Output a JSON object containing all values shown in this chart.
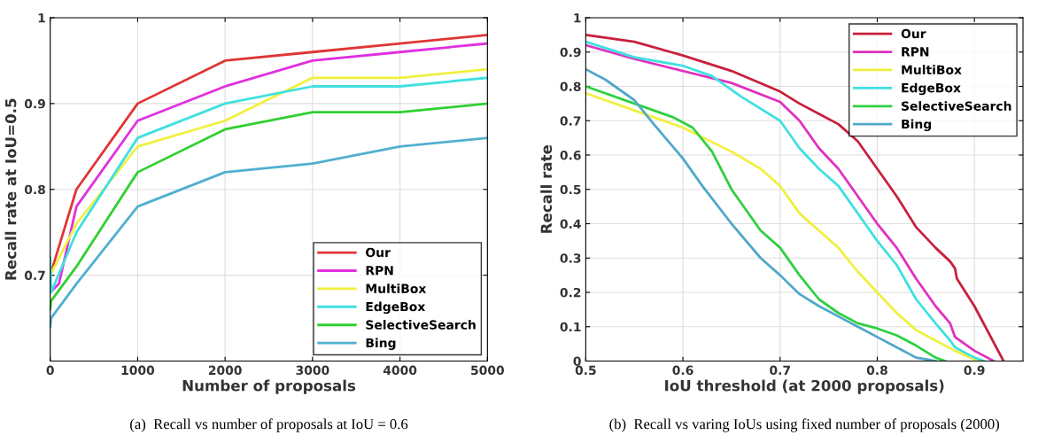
{
  "chart_data": [
    {
      "type": "line",
      "xlabel": "Number of proposals",
      "ylabel": "Recall rate at IoU=0.5",
      "xlim": [
        0,
        5000
      ],
      "xticks": [
        0,
        1000,
        2000,
        3000,
        4000,
        5000
      ],
      "ylim": [
        0.6,
        1
      ],
      "yticks": [
        0.7,
        0.8,
        0.9,
        1
      ],
      "grid": true,
      "legend": "bottom right",
      "annotations": [
        "(a)  Recall vs number of proposals at IoU = 0.6"
      ],
      "series": [
        {
          "name": "Our",
          "color": "#e03535",
          "x": [
            0,
            300,
            1000,
            2000,
            3000,
            4000,
            5000
          ],
          "values": [
            0.7,
            0.8,
            0.9,
            0.95,
            0.96,
            0.97,
            0.98
          ]
        },
        {
          "name": "RPN",
          "color": "#e030e0",
          "x": [
            0,
            100,
            300,
            1000,
            2000,
            3000,
            4000,
            5000
          ],
          "values": [
            0.68,
            0.69,
            0.78,
            0.88,
            0.92,
            0.95,
            0.96,
            0.97
          ]
        },
        {
          "name": "MultiBox",
          "color": "#f0f040",
          "x": [
            0,
            300,
            1000,
            2000,
            3000,
            4000,
            5000
          ],
          "values": [
            0.7,
            0.76,
            0.85,
            0.88,
            0.93,
            0.93,
            0.94
          ]
        },
        {
          "name": "EdgeBox",
          "color": "#40e0e0",
          "x": [
            0,
            10,
            300,
            1000,
            2000,
            3000,
            4000,
            5000
          ],
          "values": [
            0.72,
            0.68,
            0.75,
            0.86,
            0.9,
            0.92,
            0.92,
            0.93
          ]
        },
        {
          "name": "SelectiveSearch",
          "color": "#30d030",
          "x": [
            0,
            10,
            300,
            1000,
            2000,
            3000,
            4000,
            5000
          ],
          "values": [
            0.66,
            0.67,
            0.71,
            0.82,
            0.87,
            0.89,
            0.89,
            0.9
          ]
        },
        {
          "name": "Bing",
          "color": "#50b0d0",
          "x": [
            0,
            10,
            300,
            1000,
            2000,
            3000,
            4000,
            5000
          ],
          "values": [
            0.64,
            0.65,
            0.69,
            0.78,
            0.82,
            0.83,
            0.85,
            0.86
          ]
        }
      ]
    },
    {
      "type": "line",
      "xlabel": "IoU threshold (at 2000 proposals)",
      "ylabel": "Recall rate",
      "xlim": [
        0.5,
        0.95
      ],
      "xticks": [
        0.5,
        0.6,
        0.7,
        0.8,
        0.9
      ],
      "ylim": [
        0,
        1
      ],
      "yticks": [
        0,
        0.1,
        0.2,
        0.3,
        0.4,
        0.5,
        0.6,
        0.7,
        0.8,
        0.9,
        1
      ],
      "grid": true,
      "legend": "top right",
      "annotations": [
        "(b)  Recall vs varing IoUs using fixed number of proposals (2000)"
      ],
      "series": [
        {
          "name": "Our",
          "color": "#c8203c",
          "x": [
            0.5,
            0.55,
            0.6,
            0.65,
            0.7,
            0.72,
            0.74,
            0.76,
            0.78,
            0.8,
            0.82,
            0.84,
            0.86,
            0.875,
            0.88,
            0.882,
            0.9,
            0.93
          ],
          "values": [
            0.95,
            0.93,
            0.89,
            0.845,
            0.785,
            0.75,
            0.72,
            0.69,
            0.64,
            0.56,
            0.48,
            0.39,
            0.33,
            0.29,
            0.27,
            0.24,
            0.16,
            0.0
          ]
        },
        {
          "name": "RPN",
          "color": "#e030c0",
          "x": [
            0.5,
            0.55,
            0.65,
            0.7,
            0.72,
            0.74,
            0.76,
            0.78,
            0.8,
            0.82,
            0.84,
            0.86,
            0.875,
            0.88,
            0.9,
            0.92
          ],
          "values": [
            0.92,
            0.88,
            0.81,
            0.755,
            0.7,
            0.62,
            0.56,
            0.48,
            0.4,
            0.33,
            0.24,
            0.16,
            0.11,
            0.07,
            0.03,
            0.0
          ]
        },
        {
          "name": "MultiBox",
          "color": "#f0f040",
          "x": [
            0.5,
            0.55,
            0.6,
            0.65,
            0.68,
            0.7,
            0.72,
            0.74,
            0.76,
            0.78,
            0.8,
            0.82,
            0.84,
            0.86,
            0.88,
            0.9,
            0.91
          ],
          "values": [
            0.78,
            0.73,
            0.68,
            0.61,
            0.56,
            0.51,
            0.43,
            0.38,
            0.33,
            0.26,
            0.2,
            0.14,
            0.09,
            0.06,
            0.03,
            0.005,
            0.0
          ]
        },
        {
          "name": "EdgeBox",
          "color": "#40e0e0",
          "x": [
            0.5,
            0.55,
            0.6,
            0.63,
            0.66,
            0.7,
            0.72,
            0.74,
            0.76,
            0.78,
            0.8,
            0.82,
            0.84,
            0.86,
            0.875,
            0.88,
            0.9,
            0.91
          ],
          "values": [
            0.93,
            0.885,
            0.86,
            0.83,
            0.77,
            0.7,
            0.62,
            0.56,
            0.51,
            0.43,
            0.35,
            0.28,
            0.18,
            0.11,
            0.06,
            0.04,
            0.01,
            0.0
          ]
        },
        {
          "name": "SelectiveSearch",
          "color": "#30d040",
          "x": [
            0.5,
            0.55,
            0.59,
            0.61,
            0.63,
            0.65,
            0.68,
            0.7,
            0.72,
            0.74,
            0.76,
            0.78,
            0.8,
            0.82,
            0.84,
            0.86,
            0.87
          ],
          "values": [
            0.8,
            0.75,
            0.71,
            0.68,
            0.61,
            0.5,
            0.38,
            0.33,
            0.25,
            0.18,
            0.14,
            0.11,
            0.095,
            0.075,
            0.045,
            0.01,
            0.0
          ]
        },
        {
          "name": "Bing",
          "color": "#50a8c8",
          "x": [
            0.5,
            0.52,
            0.55,
            0.57,
            0.6,
            0.62,
            0.65,
            0.68,
            0.7,
            0.72,
            0.74,
            0.76,
            0.78,
            0.8,
            0.82,
            0.84,
            0.86
          ],
          "values": [
            0.85,
            0.82,
            0.76,
            0.69,
            0.59,
            0.51,
            0.4,
            0.3,
            0.25,
            0.195,
            0.16,
            0.13,
            0.1,
            0.07,
            0.04,
            0.01,
            0.0
          ]
        }
      ]
    }
  ]
}
